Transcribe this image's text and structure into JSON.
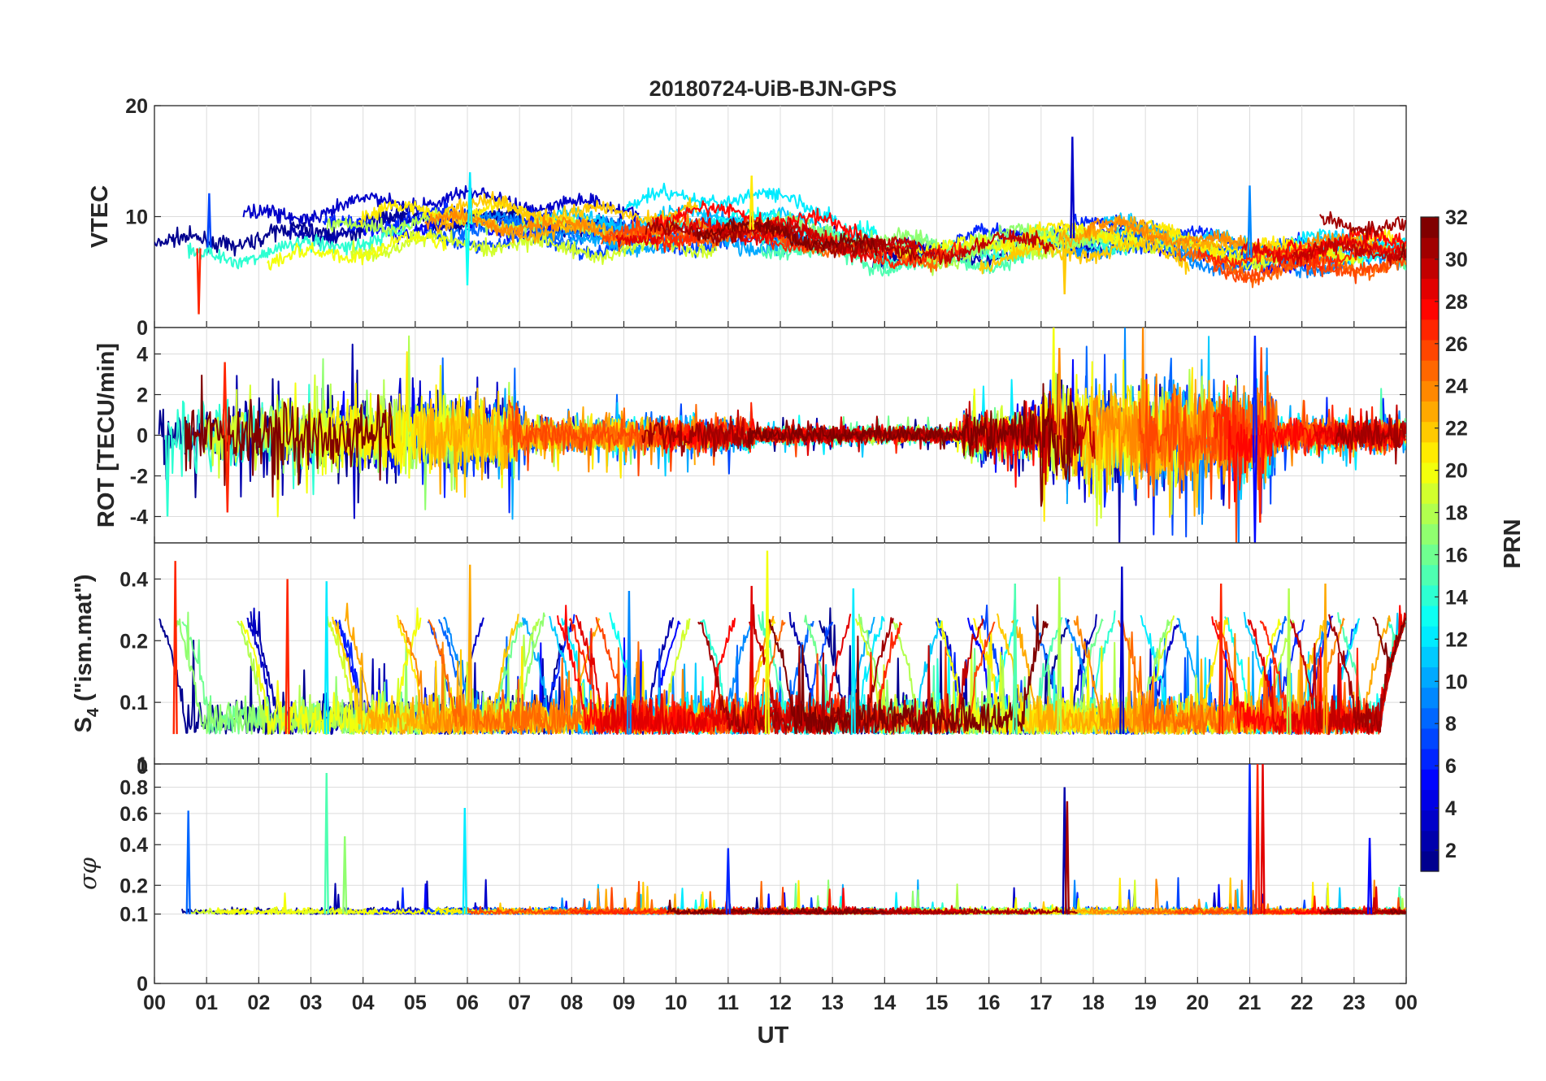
{
  "chart_data": {
    "type": "line",
    "title": "20180724-UiB-BJN-GPS",
    "xlabel": "UT",
    "x_tick_labels": [
      "00",
      "01",
      "02",
      "03",
      "04",
      "05",
      "06",
      "07",
      "08",
      "09",
      "10",
      "11",
      "12",
      "13",
      "14",
      "15",
      "16",
      "17",
      "18",
      "19",
      "20",
      "21",
      "22",
      "23",
      "00"
    ],
    "xlim_hours": [
      0,
      24
    ],
    "colorbar": {
      "label": "PRN",
      "range": [
        1,
        32
      ],
      "tick_labels": [
        "2",
        "4",
        "6",
        "8",
        "10",
        "12",
        "14",
        "16",
        "18",
        "20",
        "22",
        "24",
        "26",
        "28",
        "30",
        "32"
      ],
      "colormap": "jet",
      "colors": [
        "#00008f",
        "#0000ff",
        "#0080ff",
        "#00ffff",
        "#80ff80",
        "#ffff00",
        "#ff8000",
        "#ff0000",
        "#800000"
      ]
    },
    "panels": [
      {
        "name": "vtec",
        "ylabel": "VTEC",
        "ylim": [
          0,
          20
        ],
        "y_tick_labels": [
          "0",
          "10",
          "20"
        ],
        "baseline": [
          [
            0,
            6.8
          ],
          [
            1,
            7.2
          ],
          [
            2,
            7.6
          ],
          [
            3,
            8
          ],
          [
            4,
            8.7
          ],
          [
            5,
            9.2
          ],
          [
            6,
            9.3
          ],
          [
            7,
            9
          ],
          [
            8,
            8.6
          ],
          [
            9,
            8.5
          ],
          [
            10,
            8.8
          ],
          [
            11,
            9
          ],
          [
            12,
            8.6
          ],
          [
            13,
            7.8
          ],
          [
            14,
            7
          ],
          [
            15,
            6.8
          ],
          [
            16,
            7.3
          ],
          [
            17,
            7.8
          ],
          [
            18,
            8.2
          ],
          [
            19,
            8.2
          ],
          [
            20,
            7
          ],
          [
            21,
            6.3
          ],
          [
            22,
            6.5
          ],
          [
            23,
            6.8
          ],
          [
            24,
            6.8
          ]
        ],
        "spikes": [
          {
            "t": 0.85,
            "v": 1.2,
            "prn": 27
          },
          {
            "t": 1.05,
            "v": 12.1,
            "prn": 7
          },
          {
            "t": 6.05,
            "v": 14,
            "prn": 12
          },
          {
            "t": 6.0,
            "v": 3.8,
            "prn": 13
          },
          {
            "t": 11.45,
            "v": 13.7,
            "prn": 21
          },
          {
            "t": 17.6,
            "v": 17.2,
            "prn": 3
          },
          {
            "t": 17.45,
            "v": 3,
            "prn": 22
          },
          {
            "t": 21.0,
            "v": 12.8,
            "prn": 9
          }
        ]
      },
      {
        "name": "rot",
        "ylabel": "ROT [TECU/min]",
        "ylim": [
          -5.3,
          5.3
        ],
        "y_tick_labels": [
          "-4",
          "-2",
          "0",
          "2",
          "4"
        ],
        "activity_windows": [
          [
            0,
            7,
            1.8
          ],
          [
            7,
            11.5,
            0.8
          ],
          [
            11.5,
            15.5,
            0.4
          ],
          [
            15.5,
            17,
            1.2
          ],
          [
            17,
            20,
            2.5
          ],
          [
            20,
            21.5,
            2.2
          ],
          [
            21.5,
            24,
            0.8
          ]
        ],
        "spikes": [
          {
            "t": 21.1,
            "v": 4.9,
            "prn": 6
          },
          {
            "t": 21.1,
            "v": -5.3,
            "prn": 5
          },
          {
            "t": 21.2,
            "v": -4.3,
            "prn": 27
          },
          {
            "t": 17.35,
            "v": 4.3,
            "prn": 24
          },
          {
            "t": 0.25,
            "v": -4,
            "prn": 14
          },
          {
            "t": 1.35,
            "v": 3.6,
            "prn": 27
          },
          {
            "t": 1.4,
            "v": -3.8,
            "prn": 27
          }
        ]
      },
      {
        "name": "s4",
        "ylabel": "S4 (\"ism.mat\")",
        "ylabel_main": "S",
        "ylabel_sub": "4",
        "ylabel_rest": " (\"ism.mat\")",
        "ylim": [
          0.05,
          0.6
        ],
        "y_tick_labels": [
          "0.1",
          "0.2",
          "0.4"
        ],
        "baseline": 0.07,
        "spikes": [
          {
            "t": 0.4,
            "v": 0.49,
            "prn": 27
          },
          {
            "t": 2.55,
            "v": 0.4,
            "prn": 27
          },
          {
            "t": 3.3,
            "v": 0.39,
            "prn": 12
          },
          {
            "t": 6.05,
            "v": 0.47,
            "prn": 23
          },
          {
            "t": 11.75,
            "v": 0.55,
            "prn": 20
          },
          {
            "t": 11.45,
            "v": 0.37,
            "prn": 29
          },
          {
            "t": 17.35,
            "v": 0.41,
            "prn": 18
          },
          {
            "t": 18.55,
            "v": 0.46,
            "prn": 3
          },
          {
            "t": 16.5,
            "v": 0.38,
            "prn": 15
          },
          {
            "t": 20.45,
            "v": 0.38,
            "prn": 27
          },
          {
            "t": 21.75,
            "v": 0.36,
            "prn": 18
          },
          {
            "t": 22.45,
            "v": 0.38,
            "prn": 23
          },
          {
            "t": 9.1,
            "v": 0.35,
            "prn": 9
          },
          {
            "t": 13.4,
            "v": 0.36,
            "prn": 12
          }
        ]
      },
      {
        "name": "sigma_phi",
        "ylabel": "σφ",
        "ylim": [
          0,
          1
        ],
        "y_tick_labels": [
          "0",
          "0.1",
          "0.2",
          "0.4",
          "0.6",
          "0.8",
          "1"
        ],
        "top_partial_tick": "0",
        "baseline": 0.1,
        "spikes": [
          {
            "t": 3.3,
            "v": 0.92,
            "prn": 15
          },
          {
            "t": 0.65,
            "v": 0.62,
            "prn": 8
          },
          {
            "t": 5.95,
            "v": 0.64,
            "prn": 12
          },
          {
            "t": 3.65,
            "v": 0.45,
            "prn": 17
          },
          {
            "t": 17.45,
            "v": 0.8,
            "prn": 2
          },
          {
            "t": 17.5,
            "v": 0.69,
            "prn": 31
          },
          {
            "t": 21.0,
            "v": 1.0,
            "prn": 6
          },
          {
            "t": 21.15,
            "v": 1.0,
            "prn": 27
          },
          {
            "t": 21.25,
            "v": 1.0,
            "prn": 29
          },
          {
            "t": 23.3,
            "v": 0.44,
            "prn": 5
          },
          {
            "t": 11.0,
            "v": 0.38,
            "prn": 6
          }
        ]
      }
    ]
  }
}
